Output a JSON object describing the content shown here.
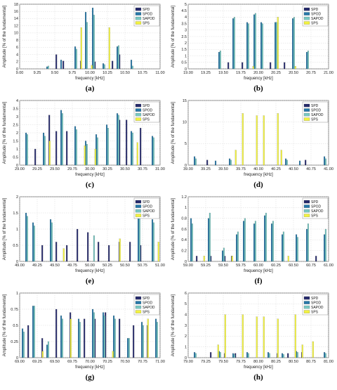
{
  "figure": {
    "series_styles": [
      {
        "name": "SPD",
        "color": "#262a6b"
      },
      {
        "name": "SPOD",
        "color": "#2778a8"
      },
      {
        "name": "SAPOD",
        "color": "#79c7c2"
      },
      {
        "name": "SPS",
        "color": "#f2f241"
      }
    ]
  },
  "chart_data": [
    {
      "panel": "(a)",
      "type": "bar",
      "xlabel": "frequency [kHz]",
      "ylabel": "Amplitude [% of the fundamental]",
      "xlim": [
        9.0,
        11.0
      ],
      "ylim": [
        0,
        18
      ],
      "xticks": [
        "9.00",
        "9.25",
        "9.50",
        "9.75",
        "10.00",
        "10.25",
        "10.50",
        "10.75",
        "11.00"
      ],
      "yticks": [
        "0",
        "2",
        "4",
        "6",
        "8",
        "10",
        "12",
        "14",
        "16",
        "18"
      ],
      "legend": [
        "SPD",
        "SPOD",
        "SAPOD",
        "SPS"
      ],
      "series": [
        {
          "name": "SPD",
          "x": [
            9.55,
            9.65,
            9.9,
            10.1,
            10.35,
            10.45
          ],
          "values": [
            4.0,
            2.2,
            2.2,
            2.0,
            2.2,
            4.0
          ]
        },
        {
          "name": "SPOD",
          "x": [
            9.4,
            9.6,
            9.8,
            9.95,
            10.05,
            10.2,
            10.4,
            10.6
          ],
          "values": [
            0.6,
            2.5,
            6.2,
            15.8,
            17.0,
            1.5,
            6.2,
            2.5
          ]
        },
        {
          "name": "SAPOD",
          "x": [
            9.4,
            9.8,
            9.95,
            10.05,
            10.2,
            10.4,
            10.6
          ],
          "values": [
            0.8,
            5.5,
            13.0,
            15.0,
            1.2,
            6.5,
            0.8
          ]
        },
        {
          "name": "SPS",
          "x": [
            9.85,
            10.0,
            10.25
          ],
          "values": [
            11.5,
            1.0,
            11.5
          ]
        }
      ]
    },
    {
      "panel": "(b)",
      "type": "bar",
      "xlabel": "frequency [kHz]",
      "ylabel": "Amplitude [% of the fundamental]",
      "xlim": [
        19.0,
        21.0
      ],
      "ylim": [
        0,
        5
      ],
      "xticks": [
        "19.00",
        "19.25",
        "19.50",
        "19.75",
        "20.00",
        "20.25",
        "20.50",
        "20.75",
        "21.00"
      ],
      "yticks": [
        "0",
        "0.5",
        "1",
        "1.5",
        "2",
        "2.5",
        "3",
        "3.5",
        "4",
        "4.5",
        "5"
      ],
      "legend": [
        "SPD",
        "SPOD",
        "SAPOD",
        "SPS"
      ],
      "series": [
        {
          "name": "SPD",
          "x": [
            19.6,
            19.8,
            20.2,
            20.4
          ],
          "values": [
            0.5,
            0.5,
            0.5,
            0.5
          ]
        },
        {
          "name": "SPOD",
          "x": [
            19.45,
            19.65,
            19.85,
            19.95,
            20.05,
            20.25,
            20.5,
            20.7
          ],
          "values": [
            1.3,
            3.9,
            3.6,
            4.2,
            3.6,
            3.6,
            3.9,
            1.3
          ]
        },
        {
          "name": "SAPOD",
          "x": [
            19.45,
            19.65,
            19.85,
            19.95,
            20.05,
            20.25,
            20.5,
            20.7
          ],
          "values": [
            1.4,
            4.0,
            3.5,
            4.3,
            3.5,
            3.6,
            4.0,
            1.4
          ]
        },
        {
          "name": "SPS",
          "x": [
            19.9,
            20.25,
            20.5
          ],
          "values": [
            0.2,
            4.0,
            0.2
          ]
        }
      ]
    },
    {
      "panel": "(c)",
      "type": "bar",
      "xlabel": "frequency [kHz]",
      "ylabel": "Amplitude [% of the fundamental]",
      "xlim": [
        29.0,
        31.0
      ],
      "ylim": [
        0,
        4
      ],
      "xticks": [
        "29.00",
        "29.25",
        "29.50",
        "29.75",
        "30.00",
        "30.25",
        "30.50",
        "30.75",
        "31.00"
      ],
      "yticks": [
        "0",
        "0.5",
        "1",
        "1.5",
        "2",
        "2.5",
        "3",
        "3.5",
        "4"
      ],
      "legend": [
        "SPD",
        "SPOD",
        "SAPOD",
        "SPS"
      ],
      "series": [
        {
          "name": "SPD",
          "x": [
            29.25,
            29.45,
            29.55,
            29.7,
            30.45,
            30.55,
            30.75
          ],
          "values": [
            1.0,
            3.1,
            2.1,
            2.1,
            2.8,
            2.8,
            2.3
          ]
        },
        {
          "name": "SPOD",
          "x": [
            29.1,
            29.35,
            29.6,
            29.8,
            29.95,
            30.1,
            30.25,
            30.4,
            30.6,
            30.9
          ],
          "values": [
            2.0,
            2.0,
            3.4,
            2.4,
            1.5,
            1.9,
            2.5,
            3.2,
            2.1,
            1.8
          ]
        },
        {
          "name": "SAPOD",
          "x": [
            29.1,
            29.35,
            29.6,
            29.8,
            29.95,
            30.1,
            30.25,
            30.4,
            30.6,
            30.9
          ],
          "values": [
            1.9,
            1.8,
            3.2,
            2.2,
            1.3,
            1.7,
            2.3,
            3.1,
            2.0,
            1.7
          ]
        },
        {
          "name": "SPS",
          "x": [
            29.4,
            29.9,
            30.05,
            30.65
          ],
          "values": [
            1.5,
            1.2,
            1.0,
            1.4
          ]
        }
      ]
    },
    {
      "panel": "(d)",
      "type": "bar",
      "xlabel": "frequency [kHz]",
      "ylabel": "Amplitude [% of the fundamental]",
      "xlim": [
        39.0,
        41.0
      ],
      "ylim": [
        0,
        15
      ],
      "xticks": [
        "39.00",
        "39.25",
        "39.50",
        "39.75",
        "40.00",
        "40.25",
        "40.50",
        "40.75",
        "41.00"
      ],
      "yticks": [
        "0",
        "5",
        "10",
        "15"
      ],
      "legend": [
        "SPD",
        "SPOD",
        "SAPOD",
        "SPS"
      ],
      "series": [
        {
          "name": "SPD",
          "x": [
            39.3,
            40.7
          ],
          "values": [
            1.2,
            1.2
          ]
        },
        {
          "name": "SPOD",
          "x": [
            39.1,
            39.4,
            39.6,
            40.4,
            40.6,
            40.95
          ],
          "values": [
            2.0,
            1.0,
            1.5,
            1.5,
            1.0,
            2.0
          ]
        },
        {
          "name": "SAPOD",
          "x": [
            39.1,
            39.6,
            40.4,
            40.95
          ],
          "values": [
            1.5,
            1.2,
            1.2,
            1.5
          ]
        },
        {
          "name": "SPS",
          "x": [
            39.65,
            39.75,
            39.95,
            40.05,
            40.25,
            40.3
          ],
          "values": [
            3.5,
            12.0,
            11.5,
            11.5,
            12.0,
            3.5
          ]
        }
      ]
    },
    {
      "panel": "(e)",
      "type": "bar",
      "xlabel": "frequency [kHz]",
      "ylabel": "Amplitude [% of the fundamental]",
      "xlim": [
        49.0,
        51.0
      ],
      "ylim": [
        0,
        2
      ],
      "xticks": [
        "49.00",
        "49.25",
        "49.50",
        "49.75",
        "50.00",
        "50.25",
        "50.50",
        "50.75",
        "51.00"
      ],
      "yticks": [
        "0",
        "0.5",
        "1",
        "1.5",
        "2"
      ],
      "legend": [
        "SPD",
        "SPOD",
        "SAPOD",
        "SPS"
      ],
      "series": [
        {
          "name": "SPD",
          "x": [
            49.35,
            49.55,
            49.7,
            49.85,
            50.0,
            50.15,
            50.3,
            50.45,
            50.6,
            50.75
          ],
          "values": [
            0.5,
            0.6,
            0.5,
            1.0,
            0.9,
            0.6,
            0.5,
            0.6,
            0.6,
            0.5
          ]
        },
        {
          "name": "SPOD",
          "x": [
            49.1,
            49.2,
            49.45,
            50.7,
            50.9
          ],
          "values": [
            1.5,
            1.2,
            1.3,
            1.5,
            1.3
          ]
        },
        {
          "name": "SAPOD",
          "x": [
            49.1,
            49.2,
            49.45,
            50.05,
            50.7,
            50.9
          ],
          "values": [
            1.4,
            1.1,
            1.2,
            0.8,
            1.4,
            1.2
          ]
        },
        {
          "name": "SPS",
          "x": [
            49.6,
            50.4,
            50.95
          ],
          "values": [
            0.4,
            0.7,
            0.6
          ]
        }
      ]
    },
    {
      "panel": "(f)",
      "type": "bar",
      "xlabel": "frequency [kHz]",
      "ylabel": "Amplitude [% of the fundamental]",
      "xlim": [
        59.0,
        61.0
      ],
      "ylim": [
        0,
        1.2
      ],
      "xticks": [
        "59.00",
        "59.25",
        "59.50",
        "59.75",
        "60.00",
        "60.25",
        "60.50",
        "60.75",
        "61.00"
      ],
      "yticks": [
        "0",
        "0.2",
        "0.4",
        "0.6",
        "0.8",
        "1",
        "1.2"
      ],
      "legend": [
        "SPD",
        "SPOD",
        "SAPOD",
        "SPS"
      ],
      "series": [
        {
          "name": "SPD",
          "x": [
            59.15,
            59.35,
            59.55,
            59.65,
            60.85
          ],
          "values": [
            0.1,
            0.1,
            0.1,
            0.1,
            0.1
          ]
        },
        {
          "name": "SPOD",
          "x": [
            59.05,
            59.3,
            59.5,
            59.7,
            59.8,
            59.95,
            60.1,
            60.2,
            60.35,
            60.55,
            60.7,
            60.95
          ],
          "values": [
            0.8,
            0.8,
            0.2,
            0.5,
            0.75,
            0.7,
            0.85,
            0.7,
            0.5,
            0.5,
            0.6,
            0.5
          ]
        },
        {
          "name": "SAPOD",
          "x": [
            59.05,
            59.3,
            59.5,
            59.7,
            59.8,
            59.95,
            60.1,
            60.2,
            60.35,
            60.55,
            60.7,
            60.95
          ],
          "values": [
            0.7,
            0.9,
            0.25,
            0.55,
            0.8,
            0.75,
            0.9,
            0.75,
            0.55,
            0.45,
            0.7,
            0.6
          ]
        },
        {
          "name": "SPS",
          "x": [
            59.2,
            59.6,
            60.4
          ],
          "values": [
            0.1,
            0.1,
            0.1
          ]
        }
      ]
    },
    {
      "panel": "(g)",
      "type": "bar",
      "xlabel": "frequency [kHz]",
      "ylabel": "Amplitude [% of the fundamental]",
      "xlim": [
        69.0,
        71.0
      ],
      "ylim": [
        0,
        1
      ],
      "xticks": [
        "69.00",
        "69.25",
        "69.50",
        "69.75",
        "70.00",
        "70.25",
        "70.50",
        "70.75",
        "71.00"
      ],
      "yticks": [
        "0",
        "0.25",
        "0.5",
        "0.75",
        "1"
      ],
      "legend": [
        "SPD",
        "SPOD",
        "SAPOD",
        "SPS"
      ],
      "series": [
        {
          "name": "SPD",
          "x": [
            69.15,
            69.35,
            69.55,
            69.75,
            69.95,
            70.1,
            70.25,
            70.45,
            70.65,
            70.85
          ],
          "values": [
            0.5,
            0.3,
            0.75,
            0.7,
            0.6,
            0.6,
            0.7,
            0.6,
            0.5,
            0.5
          ]
        },
        {
          "name": "SPOD",
          "x": [
            69.05,
            69.2,
            69.4,
            69.6,
            69.85,
            70.05,
            70.2,
            70.35,
            70.55,
            70.75,
            70.95
          ],
          "values": [
            0.45,
            0.8,
            0.2,
            0.65,
            0.6,
            0.75,
            0.7,
            0.65,
            0.3,
            0.55,
            0.6
          ]
        },
        {
          "name": "SAPOD",
          "x": [
            69.05,
            69.2,
            69.4,
            69.6,
            69.85,
            70.05,
            70.2,
            70.35,
            70.55,
            70.75,
            70.95
          ],
          "values": [
            0.4,
            0.8,
            0.25,
            0.6,
            0.55,
            0.7,
            0.65,
            0.6,
            0.3,
            0.5,
            0.55
          ]
        },
        {
          "name": "SPS",
          "x": [
            69.3,
            69.7,
            70.3,
            70.8
          ],
          "values": [
            0.1,
            0.6,
            0.1,
            0.6
          ]
        }
      ]
    },
    {
      "panel": "(h)",
      "type": "bar",
      "xlabel": "frequency [kHz]",
      "ylabel": "Amplitude [% of the fundamental]",
      "xlim": [
        79.0,
        81.0
      ],
      "ylim": [
        0,
        6
      ],
      "xticks": [
        "79.00",
        "79.25",
        "79.50",
        "79.75",
        "80.00",
        "80.25",
        "80.50",
        "80.75",
        "81.00"
      ],
      "yticks": [
        "0",
        "1",
        "2",
        "3",
        "4",
        "5",
        "6"
      ],
      "legend": [
        "SPD",
        "SPOD",
        "SAPOD",
        "SPS"
      ],
      "series": [
        {
          "name": "SPD",
          "x": [
            79.35,
            79.55,
            79.7,
            80.3,
            80.45,
            80.65
          ],
          "values": [
            0.5,
            0.4,
            0.4,
            0.4,
            0.4,
            0.5
          ]
        },
        {
          "name": "SPOD",
          "x": [
            79.1,
            79.45,
            79.65,
            79.85,
            80.15,
            80.35,
            80.55,
            80.95
          ],
          "values": [
            0.5,
            0.6,
            0.4,
            0.5,
            0.5,
            0.4,
            0.6,
            0.5
          ]
        },
        {
          "name": "SAPOD",
          "x": [
            79.1,
            79.45,
            79.65,
            79.85,
            80.15,
            80.35,
            80.55,
            80.95
          ],
          "values": [
            0.4,
            0.5,
            0.3,
            0.4,
            0.4,
            0.3,
            0.5,
            0.4
          ]
        },
        {
          "name": "SPS",
          "x": [
            79.4,
            79.5,
            79.75,
            79.95,
            80.05,
            80.25,
            80.5,
            80.6,
            80.75
          ],
          "values": [
            1.2,
            4.0,
            4.0,
            3.8,
            3.8,
            3.6,
            4.0,
            1.2,
            1.5
          ]
        }
      ]
    }
  ]
}
